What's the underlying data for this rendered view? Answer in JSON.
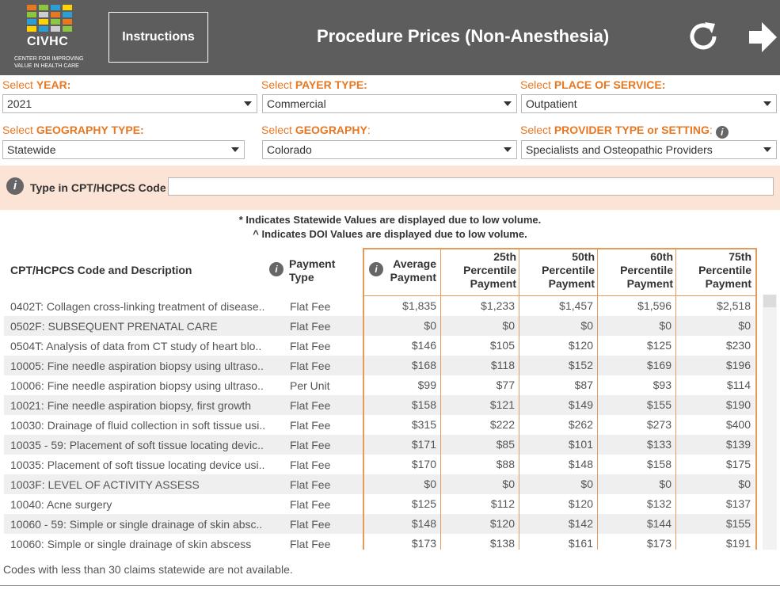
{
  "header": {
    "logo": {
      "name": "CIVHC",
      "subtitle_line1": "CENTER FOR IMPROVING",
      "subtitle_line2": "VALUE IN HEALTH CARE",
      "colors": [
        "#e87722",
        "#8dc63f",
        "#2a9fd6",
        "#ffd200"
      ]
    },
    "instructions_label": "Instructions",
    "title": "Procedure Prices (Non-Anesthesia)",
    "reset_icon": "refresh-icon",
    "forward_icon": "arrow-right-icon"
  },
  "filters": {
    "year": {
      "prefix": "Select ",
      "label": "YEAR:",
      "value": "2021"
    },
    "payer_type": {
      "prefix": "Select ",
      "label": "PAYER TYPE:",
      "value": "Commercial"
    },
    "place_of_service": {
      "prefix": "Select ",
      "label": "PLACE OF SERVICE:",
      "value": "Outpatient"
    },
    "geography_type": {
      "prefix": "Select ",
      "label": "GEOGRAPHY TYPE:",
      "value": "Statewide"
    },
    "geography": {
      "prefix": "Select ",
      "label": "GEOGRAPHY",
      "suffix": ":",
      "value": "Colorado"
    },
    "provider_type": {
      "prefix": "Select ",
      "label": "PROVIDER TYPE or SETTING",
      "suffix": ":",
      "value": "Specialists and Osteopathic Providers"
    }
  },
  "search": {
    "label": "Type in CPT/HCPCS Code",
    "value": ""
  },
  "notes": {
    "statewide": "* Indicates Statewide Values are displayed due to low volume.",
    "doi": "^ Indicates DOI Values are displayed due to low volume."
  },
  "table": {
    "headers": {
      "code": "CPT/HCPCS Code and Description",
      "payment_type": [
        "Payment",
        "Type"
      ],
      "average": [
        "Average",
        "Payment"
      ],
      "p25": [
        "25th",
        "Percentile",
        "Payment"
      ],
      "p50": [
        "50th",
        "Percentile",
        "Payment"
      ],
      "p60": [
        "60th",
        "Percentile",
        "Payment"
      ],
      "p75": [
        "75th",
        "Percentile",
        "Payment"
      ]
    },
    "rows": [
      {
        "desc": "0402T: Collagen cross-linking treatment of disease..",
        "type": "Flat Fee",
        "avg": "$1,835",
        "p25": "$1,233",
        "p50": "$1,457",
        "p60": "$1,596",
        "p75": "$2,518"
      },
      {
        "desc": "0502F: SUBSEQUENT PRENATAL CARE",
        "type": "Flat Fee",
        "avg": "$0",
        "p25": "$0",
        "p50": "$0",
        "p60": "$0",
        "p75": "$0"
      },
      {
        "desc": "0504T: Analysis of data from CT study of heart blo..",
        "type": "Flat Fee",
        "avg": "$146",
        "p25": "$105",
        "p50": "$120",
        "p60": "$125",
        "p75": "$230"
      },
      {
        "desc": "10005: Fine needle aspiration biopsy using ultraso..",
        "type": "Flat Fee",
        "avg": "$168",
        "p25": "$118",
        "p50": "$152",
        "p60": "$169",
        "p75": "$196"
      },
      {
        "desc": "10006: Fine needle aspiration biopsy using ultraso..",
        "type": "Per Unit",
        "avg": "$99",
        "p25": "$77",
        "p50": "$87",
        "p60": "$93",
        "p75": "$114"
      },
      {
        "desc": "10021: Fine needle aspiration biopsy, first growth",
        "type": "Flat Fee",
        "avg": "$158",
        "p25": "$121",
        "p50": "$149",
        "p60": "$155",
        "p75": "$190"
      },
      {
        "desc": "10030: Drainage of fluid collection in soft tissue usi..",
        "type": "Flat Fee",
        "avg": "$315",
        "p25": "$222",
        "p50": "$262",
        "p60": "$273",
        "p75": "$400"
      },
      {
        "desc": "10035 - 59: Placement of soft tissue locating devic..",
        "type": "Flat Fee",
        "avg": "$171",
        "p25": "$85",
        "p50": "$101",
        "p60": "$133",
        "p75": "$139"
      },
      {
        "desc": "10035: Placement of soft tissue locating device usi..",
        "type": "Flat Fee",
        "avg": "$170",
        "p25": "$88",
        "p50": "$148",
        "p60": "$158",
        "p75": "$175"
      },
      {
        "desc": "1003F: LEVEL OF ACTIVITY ASSESS",
        "type": "Flat Fee",
        "avg": "$0",
        "p25": "$0",
        "p50": "$0",
        "p60": "$0",
        "p75": "$0"
      },
      {
        "desc": "10040: Acne surgery",
        "type": "Flat Fee",
        "avg": "$125",
        "p25": "$112",
        "p50": "$120",
        "p60": "$132",
        "p75": "$137"
      },
      {
        "desc": "10060 - 59: Simple or single drainage of skin absc..",
        "type": "Flat Fee",
        "avg": "$148",
        "p25": "$120",
        "p50": "$142",
        "p60": "$144",
        "p75": "$155"
      },
      {
        "desc": "10060: Simple or single drainage of skin abscess",
        "type": "Flat Fee",
        "avg": "$173",
        "p25": "$138",
        "p50": "$161",
        "p60": "$173",
        "p75": "$191"
      }
    ]
  },
  "footer": "Codes with less than 30 claims statewide are not available.",
  "colors": {
    "header_bg": "#5d5d5d",
    "accent_orange": "#e87722",
    "search_band": "#fbe3d6",
    "border_orange": "#e39a5a"
  }
}
